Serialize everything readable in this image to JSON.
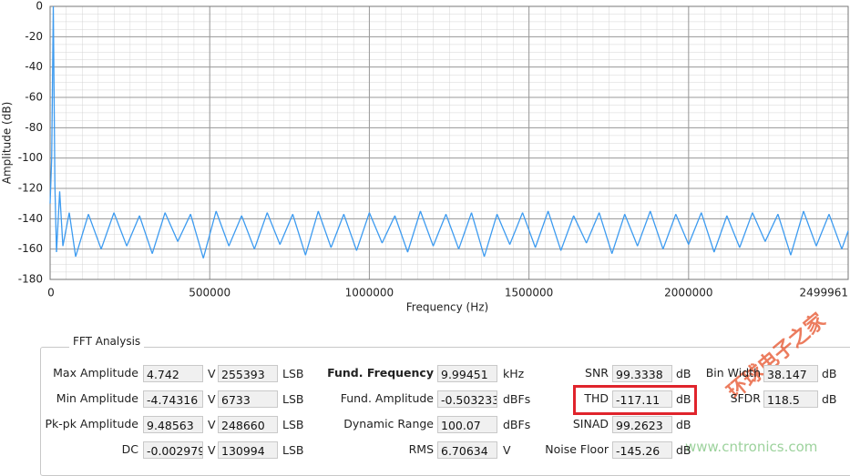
{
  "chart_data": {
    "type": "line",
    "x_label": "Frequency (Hz)",
    "y_label": "Amplitude (dB)",
    "x": [
      0,
      5000,
      10000,
      15000,
      20000,
      30000,
      40000,
      60000,
      80000,
      120000,
      160000,
      200000,
      240000,
      280000,
      320000,
      360000,
      400000,
      440000,
      480000,
      520000,
      560000,
      600000,
      640000,
      680000,
      720000,
      760000,
      800000,
      840000,
      880000,
      920000,
      960000,
      1000000,
      1040000,
      1080000,
      1120000,
      1160000,
      1200000,
      1240000,
      1280000,
      1320000,
      1360000,
      1400000,
      1440000,
      1480000,
      1520000,
      1560000,
      1600000,
      1640000,
      1680000,
      1720000,
      1760000,
      1800000,
      1840000,
      1880000,
      1920000,
      1960000,
      2000000,
      2040000,
      2080000,
      2120000,
      2160000,
      2200000,
      2240000,
      2280000,
      2320000,
      2360000,
      2400000,
      2440000,
      2480000,
      2499961
    ],
    "series": [
      {
        "color": "#3d9bf0",
        "values": [
          -130,
          -100,
          0,
          -118,
          -162,
          -122,
          -158,
          -136,
          -165,
          -137,
          -160,
          -136,
          -158,
          -138,
          -163,
          -136,
          -155,
          -137,
          -166,
          -135,
          -158,
          -138,
          -160,
          -136,
          -157,
          -137,
          -164,
          -135,
          -159,
          -137,
          -161,
          -136,
          -156,
          -138,
          -162,
          -135,
          -158,
          -137,
          -160,
          -136,
          -165,
          -137,
          -157,
          -136,
          -159,
          -135,
          -161,
          -138,
          -156,
          -136,
          -163,
          -137,
          -158,
          -135,
          -160,
          -137,
          -157,
          -136,
          -162,
          -138,
          -159,
          -136,
          -155,
          -137,
          -164,
          -135,
          -158,
          -137,
          -160,
          -148
        ]
      }
    ],
    "xlim": [
      0,
      2499961
    ],
    "xticks": [
      0,
      500000,
      1000000,
      1500000,
      2000000,
      2499961
    ],
    "ylim": [
      -180,
      0
    ],
    "yticks": [
      -180,
      -160,
      -140,
      -120,
      -100,
      -80,
      -60,
      -40,
      -20,
      0
    ],
    "grid": true
  },
  "panel": {
    "title": "FFT Analysis",
    "columns": [
      [
        {
          "label": "Max Amplitude",
          "value": "4.742",
          "unit": "V",
          "value2": "255393",
          "unit2": "LSB"
        },
        {
          "label": "Min Amplitude",
          "value": "-4.74316",
          "unit": "V",
          "value2": "6733",
          "unit2": "LSB"
        },
        {
          "label": "Pk-pk Amplitude",
          "value": "9.48563",
          "unit": "V",
          "value2": "248660",
          "unit2": "LSB"
        },
        {
          "label": "DC",
          "value": "-0.002979",
          "unit": "V",
          "value2": "130994",
          "unit2": "LSB"
        }
      ],
      [
        {
          "label": "Fund. Frequency",
          "value": "9.99451",
          "unit": "kHz"
        },
        {
          "label": "Fund. Amplitude",
          "value": "-0.503233",
          "unit": "dBFs"
        },
        {
          "label": "Dynamic Range",
          "value": "100.07",
          "unit": "dBFs"
        },
        {
          "label": "RMS",
          "value": "6.70634",
          "unit": "V"
        }
      ],
      [
        {
          "label": "SNR",
          "value": "99.3338",
          "unit": "dB"
        },
        {
          "label": "THD",
          "value": "-117.11",
          "unit": "dB"
        },
        {
          "label": "SINAD",
          "value": "99.2623",
          "unit": "dB"
        },
        {
          "label": "Noise Floor",
          "value": "-145.26",
          "unit": "dB"
        }
      ],
      [
        {
          "label": "Bin Width",
          "value": "38.147",
          "unit": "dB"
        },
        {
          "label": "SFDR",
          "value": "118.5",
          "unit": "dB"
        }
      ]
    ]
  },
  "watermark": {
    "site": "www.cntronics.com",
    "brand": "环球电子之家"
  }
}
